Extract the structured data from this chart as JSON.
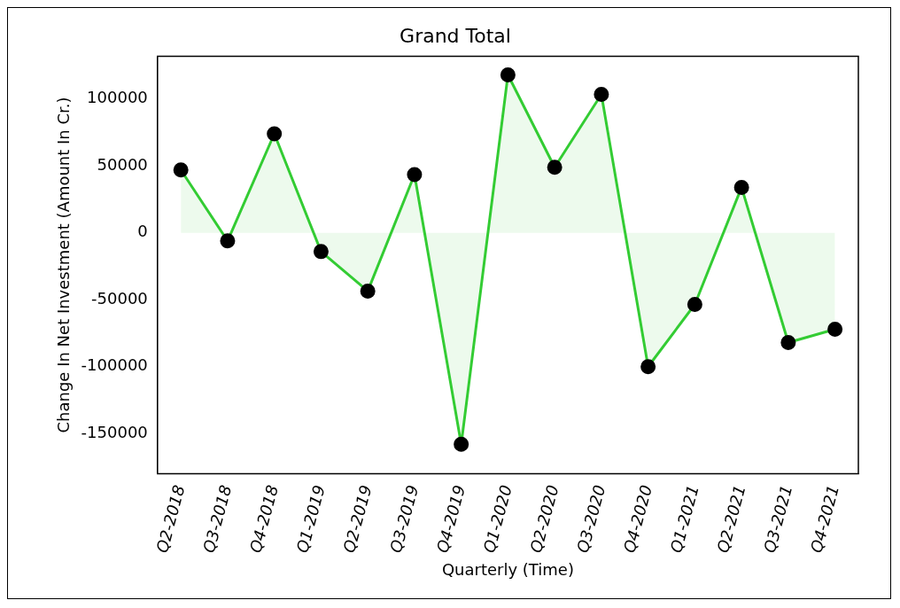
{
  "chart_data": {
    "type": "line",
    "title": "Grand Total",
    "xlabel": "Quarterly (Time)",
    "ylabel": "Change In Net Investment (Amount In Cr.)",
    "categories": [
      "Q2-2018",
      "Q3-2018",
      "Q4-2018",
      "Q1-2019",
      "Q2-2019",
      "Q3-2019",
      "Q4-2019",
      "Q1-2020",
      "Q2-2020",
      "Q3-2020",
      "Q4-2020",
      "Q1-2021",
      "Q2-2021",
      "Q3-2021",
      "Q4-2021"
    ],
    "series": [
      {
        "type": "area",
        "color": "#33cc33",
        "values": [
          47000,
          -6000,
          74000,
          -14000,
          -43500,
          43500,
          -158000,
          118000,
          49000,
          103500,
          -100000,
          -53500,
          34000,
          -82000,
          -72000
        ]
      }
    ],
    "ylim": [
      -180000,
      132000
    ],
    "yticks": [
      -150000,
      -100000,
      -50000,
      0,
      50000,
      100000
    ],
    "marker": "circle",
    "line_style": "solid",
    "grid": false,
    "legend": false
  }
}
